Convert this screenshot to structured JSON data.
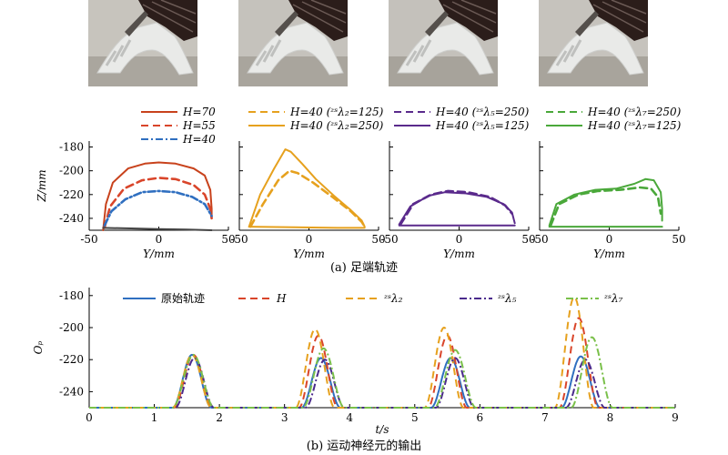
{
  "photos": [
    {
      "label": "photo-frame-1",
      "bg": "#c7c4bd",
      "floor": "#aaa69e"
    },
    {
      "label": "photo-frame-2",
      "bg": "#c5c2bc",
      "floor": "#a9a59d"
    },
    {
      "label": "photo-frame-3",
      "bg": "#c4c1bb",
      "floor": "#a7a39b"
    },
    {
      "label": "photo-frame-4",
      "bg": "#c6c3bd",
      "floor": "#a8a49c"
    }
  ],
  "captions": {
    "a": "(a) 足端轨迹",
    "b": "(b) 运动神经元的输出"
  },
  "legend_a": [
    {
      "panel": 1,
      "text": "H=70",
      "color": "#c8421c",
      "dash": "solid"
    },
    {
      "panel": 1,
      "text": "H=55",
      "color": "#d9452a",
      "dash": "dashed"
    },
    {
      "panel": 1,
      "text": "H=40",
      "color": "#2f6fc0",
      "dash": "dashdot"
    },
    {
      "panel": 2,
      "text": "H=40 (ᶻˢλ₂=125)",
      "color": "#e6a11e",
      "dash": "dashed"
    },
    {
      "panel": 2,
      "text": "H=40 (ᶻˢλ₂=250)",
      "color": "#e6a11e",
      "dash": "solid"
    },
    {
      "panel": 3,
      "text": "H=40 (ᶻˢλ₅=250)",
      "color": "#5a2a8c",
      "dash": "dashed"
    },
    {
      "panel": 3,
      "text": "H=40 (ᶻˢλ₅=125)",
      "color": "#5a2a8c",
      "dash": "solid"
    },
    {
      "panel": 4,
      "text": "H=40 (ᶻˢλ₇=250)",
      "color": "#4aa83a",
      "dash": "dashed"
    },
    {
      "panel": 4,
      "text": "H=40 (ᶻˢλ₇=125)",
      "color": "#4aa83a",
      "dash": "solid"
    }
  ],
  "legend_b": [
    {
      "text": "原始轨迹",
      "color": "#2f6fc0",
      "dash": "solid"
    },
    {
      "text": "H",
      "color": "#d9452a",
      "dash": "dashed"
    },
    {
      "text": "ᶻˢλ₂",
      "color": "#e6a11e",
      "dash": "dashed"
    },
    {
      "text": "ᶻˢλ₅",
      "color": "#4a2a8c",
      "dash": "dashdot"
    },
    {
      "text": "ᶻˢλ₇",
      "color": "#7ac04a",
      "dash": "dashdot"
    }
  ],
  "chart_data": [
    {
      "type": "line",
      "xlabel": "Y/mm",
      "ylabel": "Z/mm",
      "xlim": [
        -50,
        50
      ],
      "ylim": [
        -250,
        -175
      ],
      "xticks": [
        -50,
        0,
        50
      ],
      "yticks": [
        -180,
        -200,
        -220,
        -240
      ],
      "panels": [
        {
          "series": [
            {
              "name": "H=70",
              "color": "#c8421c",
              "dash": "solid",
              "points": [
                [
                  -40,
                  -250
                ],
                [
                  -38,
                  -228
                ],
                [
                  -33,
                  -210
                ],
                [
                  -22,
                  -198
                ],
                [
                  -10,
                  -194
                ],
                [
                  0,
                  -193
                ],
                [
                  12,
                  -194
                ],
                [
                  25,
                  -198
                ],
                [
                  33,
                  -204
                ],
                [
                  37,
                  -216
                ],
                [
                  38,
                  -232
                ],
                [
                  38,
                  -240
                ]
              ]
            },
            {
              "name": "H=55",
              "color": "#d9452a",
              "dash": "dashed",
              "points": [
                [
                  -39,
                  -248
                ],
                [
                  -35,
                  -230
                ],
                [
                  -25,
                  -215
                ],
                [
                  -12,
                  -208
                ],
                [
                  0,
                  -206
                ],
                [
                  12,
                  -207
                ],
                [
                  25,
                  -212
                ],
                [
                  33,
                  -220
                ],
                [
                  37,
                  -232
                ],
                [
                  38,
                  -240
                ]
              ]
            },
            {
              "name": "H=40",
              "color": "#2f6fc0",
              "dash": "dashdot",
              "points": [
                [
                  -39,
                  -246
                ],
                [
                  -34,
                  -234
                ],
                [
                  -24,
                  -224
                ],
                [
                  -12,
                  -218
                ],
                [
                  0,
                  -217
                ],
                [
                  12,
                  -218
                ],
                [
                  24,
                  -222
                ],
                [
                  33,
                  -228
                ],
                [
                  38,
                  -238
                ]
              ]
            },
            {
              "name": "",
              "color": "#444444",
              "dash": "solid",
              "points": [
                [
                  -40,
                  -248
                ],
                [
                  -20,
                  -248.5
                ],
                [
                  0,
                  -249
                ],
                [
                  20,
                  -249.5
                ],
                [
                  38,
                  -250
                ]
              ]
            }
          ]
        },
        {
          "series": [
            {
              "name": "H=40 (ᶻˢλ₂=250)",
              "color": "#e6a11e",
              "dash": "solid",
              "points": [
                [
                  -43,
                  -247
                ],
                [
                  -35,
                  -220
                ],
                [
                  -25,
                  -198
                ],
                [
                  -17,
                  -182
                ],
                [
                  -13,
                  -184
                ],
                [
                  -5,
                  -194
                ],
                [
                  5,
                  -207
                ],
                [
                  18,
                  -221
                ],
                [
                  30,
                  -233
                ],
                [
                  38,
                  -242
                ],
                [
                  40,
                  -247
                ]
              ]
            },
            {
              "name": "H=40 (ᶻˢλ₂=125)",
              "color": "#e6a11e",
              "dash": "dashed",
              "points": [
                [
                  -42,
                  -247
                ],
                [
                  -33,
                  -228
                ],
                [
                  -22,
                  -208
                ],
                [
                  -14,
                  -200
                ],
                [
                  -8,
                  -202
                ],
                [
                  3,
                  -210
                ],
                [
                  18,
                  -223
                ],
                [
                  30,
                  -234
                ],
                [
                  38,
                  -243
                ],
                [
                  40,
                  -247
                ]
              ]
            },
            {
              "name": "",
              "color": "#e6a11e",
              "dash": "solid",
              "points": [
                [
                  -43,
                  -247
                ],
                [
                  -10,
                  -247.5
                ],
                [
                  20,
                  -248
                ],
                [
                  40,
                  -248
                ]
              ]
            }
          ]
        },
        {
          "series": [
            {
              "name": "H=40 (ᶻˢλ₅=125)",
              "color": "#5a2a8c",
              "dash": "solid",
              "points": [
                [
                  -43,
                  -245
                ],
                [
                  -35,
                  -230
                ],
                [
                  -22,
                  -221
                ],
                [
                  -10,
                  -218
                ],
                [
                  5,
                  -219
                ],
                [
                  20,
                  -222
                ],
                [
                  32,
                  -228
                ],
                [
                  38,
                  -235
                ],
                [
                  40,
                  -244
                ]
              ]
            },
            {
              "name": "H=40 (ᶻˢλ₅=250)",
              "color": "#5a2a8c",
              "dash": "dashed",
              "points": [
                [
                  -42,
                  -245
                ],
                [
                  -33,
                  -228
                ],
                [
                  -20,
                  -220
                ],
                [
                  -8,
                  -217
                ],
                [
                  6,
                  -218
                ],
                [
                  22,
                  -222
                ],
                [
                  33,
                  -229
                ],
                [
                  38,
                  -236
                ]
              ]
            },
            {
              "name": "",
              "color": "#5a2a8c",
              "dash": "solid",
              "points": [
                [
                  -43,
                  -246
                ],
                [
                  0,
                  -246
                ],
                [
                  40,
                  -246
                ]
              ]
            }
          ]
        },
        {
          "series": [
            {
              "name": "H=40 (ᶻˢλ₇=125)",
              "color": "#4aa83a",
              "dash": "solid",
              "points": [
                [
                  -43,
                  -246
                ],
                [
                  -38,
                  -228
                ],
                [
                  -25,
                  -220
                ],
                [
                  -10,
                  -216
                ],
                [
                  5,
                  -215
                ],
                [
                  18,
                  -211
                ],
                [
                  26,
                  -207
                ],
                [
                  32,
                  -208
                ],
                [
                  37,
                  -218
                ],
                [
                  38,
                  -232
                ],
                [
                  38,
                  -242
                ]
              ]
            },
            {
              "name": "H=40 (ᶻˢλ₇=250)",
              "color": "#4aa83a",
              "dash": "dashed",
              "points": [
                [
                  -42,
                  -246
                ],
                [
                  -36,
                  -228
                ],
                [
                  -22,
                  -220
                ],
                [
                  -8,
                  -217
                ],
                [
                  8,
                  -216
                ],
                [
                  22,
                  -214
                ],
                [
                  30,
                  -215
                ],
                [
                  35,
                  -222
                ],
                [
                  37,
                  -236
                ]
              ]
            },
            {
              "name": "",
              "color": "#4aa83a",
              "dash": "solid",
              "points": [
                [
                  -43,
                  -247
                ],
                [
                  0,
                  -247
                ],
                [
                  38,
                  -247
                ]
              ]
            }
          ]
        }
      ]
    },
    {
      "type": "line",
      "xlabel": "t/s",
      "ylabel": "Oₚ",
      "xlim": [
        0,
        9
      ],
      "ylim": [
        -250,
        -175
      ],
      "xticks": [
        0,
        1,
        2,
        3,
        4,
        5,
        6,
        7,
        8,
        9
      ],
      "yticks": [
        -180,
        -200,
        -220,
        -240
      ],
      "baseline": -250,
      "series": [
        {
          "name": "原始轨迹",
          "color": "#2f6fc0",
          "dash": "solid",
          "peaks": [
            [
              1.58,
              -217
            ],
            [
              3.56,
              -219
            ],
            [
              5.55,
              -219
            ],
            [
              7.55,
              -218
            ]
          ],
          "halfwidth": 0.3
        },
        {
          "name": "H",
          "color": "#d9452a",
          "dash": "dashed",
          "peaks": [
            [
              1.6,
              -217
            ],
            [
              3.52,
              -205
            ],
            [
              5.5,
              -205
            ],
            [
              7.52,
              -194
            ]
          ],
          "halfwidth": 0.3
        },
        {
          "name": "ᶻˢλ₂",
          "color": "#e6a11e",
          "dash": "dashed",
          "peaks": [
            [
              1.58,
              -217
            ],
            [
              3.47,
              -201
            ],
            [
              5.45,
              -200
            ],
            [
              7.45,
              -181
            ]
          ],
          "halfwidth": 0.3
        },
        {
          "name": "ᶻˢλ₅",
          "color": "#4a2a8c",
          "dash": "dashdot",
          "peaks": [
            [
              1.62,
              -219
            ],
            [
              3.62,
              -220
            ],
            [
              5.62,
              -219
            ],
            [
              7.62,
              -220
            ]
          ],
          "halfwidth": 0.3
        },
        {
          "name": "ᶻˢλ₇",
          "color": "#7ac04a",
          "dash": "dashdot",
          "peaks": [
            [
              1.6,
              -217
            ],
            [
              3.6,
              -213
            ],
            [
              5.62,
              -214
            ],
            [
              7.72,
              -206
            ]
          ],
          "halfwidth": 0.32
        }
      ]
    }
  ]
}
